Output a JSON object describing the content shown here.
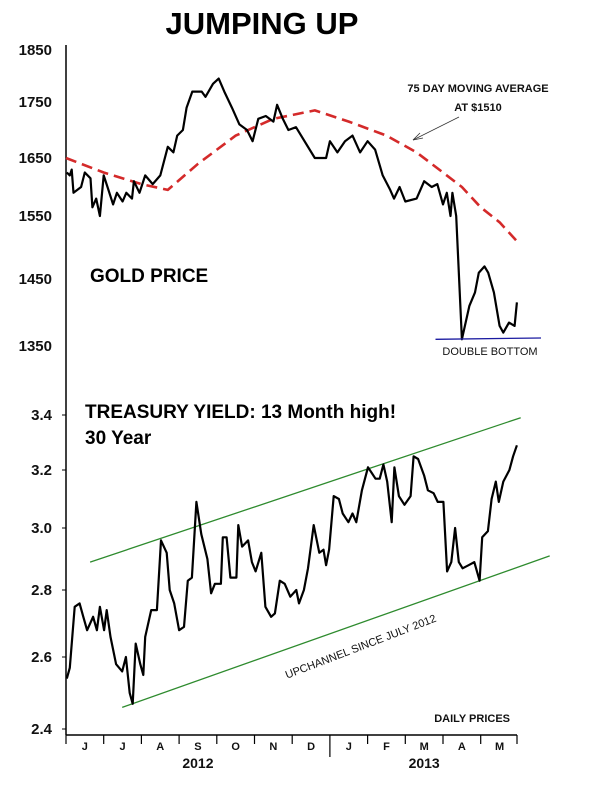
{
  "chart_data": [
    {
      "type": "line",
      "title": "JUMPING UP",
      "label": "GOLD PRICE",
      "ylim": [
        1350,
        1850
      ],
      "yticks": [
        1850,
        1750,
        1650,
        1550,
        1450,
        1350
      ],
      "series": [
        {
          "name": "Gold price",
          "color": "#000000",
          "x": [
            0.02,
            0.1,
            0.15,
            0.2,
            0.4,
            0.5,
            0.65,
            0.7,
            0.8,
            0.9,
            1.0,
            1.1,
            1.25,
            1.35,
            1.5,
            1.6,
            1.75,
            1.8,
            1.95,
            2.1,
            2.3,
            2.5,
            2.7,
            2.85,
            2.95,
            3.1,
            3.2,
            3.35,
            3.6,
            3.7,
            3.9,
            4.05,
            4.2,
            4.4,
            4.6,
            4.8,
            4.95,
            5.1,
            5.3,
            5.5,
            5.6,
            5.75,
            5.9,
            6.1,
            6.6,
            6.9,
            7.0,
            7.2,
            7.4,
            7.6,
            7.8,
            8.0,
            8.2,
            8.4,
            8.6,
            8.7,
            8.85,
            9.0,
            9.3,
            9.5,
            9.7,
            9.85,
            10.0,
            10.1,
            10.2,
            10.25,
            10.35,
            10.5,
            10.7,
            10.85,
            10.95,
            11.1,
            11.2,
            11.35,
            11.5,
            11.6,
            11.75,
            11.9,
            11.96
          ],
          "y": [
            1625,
            1620,
            1630,
            1590,
            1600,
            1625,
            1615,
            1565,
            1580,
            1550,
            1620,
            1600,
            1570,
            1590,
            1575,
            1590,
            1580,
            1610,
            1590,
            1620,
            1605,
            1620,
            1670,
            1660,
            1690,
            1700,
            1740,
            1770,
            1770,
            1760,
            1785,
            1795,
            1770,
            1740,
            1710,
            1700,
            1680,
            1720,
            1725,
            1715,
            1745,
            1720,
            1700,
            1705,
            1650,
            1650,
            1680,
            1660,
            1680,
            1690,
            1660,
            1680,
            1665,
            1620,
            1595,
            1580,
            1600,
            1575,
            1580,
            1610,
            1600,
            1605,
            1570,
            1590,
            1550,
            1590,
            1550,
            1360,
            1410,
            1430,
            1460,
            1470,
            1460,
            1430,
            1380,
            1370,
            1385,
            1380,
            1415
          ]
        },
        {
          "name": "75 day moving average",
          "color": "#d42a2a",
          "style": "dashed",
          "x": [
            0,
            1,
            2,
            2.7,
            3.5,
            4.5,
            5.5,
            6.6,
            7.5,
            8.5,
            9.3,
            10,
            10.5,
            11,
            11.5,
            11.96
          ],
          "y": [
            1650,
            1625,
            1605,
            1595,
            1640,
            1690,
            1720,
            1735,
            1715,
            1690,
            1660,
            1625,
            1600,
            1565,
            1540,
            1510
          ]
        },
        {
          "name": "Double bottom support",
          "color": "#1a1aa0",
          "x": [
            9.8,
            12.6
          ],
          "y": [
            1360,
            1362
          ]
        }
      ],
      "annotations": [
        {
          "text": "75 DAY MOVING AVERAGE",
          "line2": "AT $1510"
        },
        {
          "text": "DOUBLE BOTTOM"
        }
      ]
    },
    {
      "type": "line",
      "title": "TREASURY YIELD: 13 Month high!",
      "subtitle": "30 Year",
      "ylim": [
        2.4,
        3.4
      ],
      "yticks": [
        "3.4",
        "3.2",
        "3.0",
        "2.8",
        "2.6",
        "2.4"
      ],
      "xticks": [
        "J",
        "J",
        "A",
        "S",
        "O",
        "N",
        "D",
        "J",
        "F",
        "M",
        "A",
        "M"
      ],
      "years": [
        "2012",
        "2013"
      ],
      "note": "DAILY PRICES",
      "series": [
        {
          "name": "30 Year Treasury yield",
          "color": "#000000",
          "x": [
            0.02,
            0.1,
            0.23,
            0.36,
            0.46,
            0.56,
            0.72,
            0.82,
            0.9,
            1.01,
            1.08,
            1.18,
            1.33,
            1.49,
            1.59,
            1.69,
            1.77,
            1.85,
            1.97,
            2.05,
            2.1,
            2.26,
            2.41,
            2.52,
            2.67,
            2.75,
            2.87,
            3.0,
            3.13,
            3.23,
            3.34,
            3.46,
            3.59,
            3.75,
            3.85,
            3.95,
            4.11,
            4.16,
            4.26,
            4.36,
            4.52,
            4.57,
            4.67,
            4.83,
            4.93,
            5.03,
            5.18,
            5.29,
            5.44,
            5.54,
            5.67,
            5.8,
            5.95,
            6.11,
            6.18,
            6.31,
            6.42,
            6.57,
            6.72,
            6.83,
            6.9,
            6.98,
            7.1,
            7.24,
            7.34,
            7.49,
            7.6,
            7.7,
            7.85,
            8.01,
            8.11,
            8.21,
            8.32,
            8.42,
            8.52,
            8.64,
            8.71,
            8.83,
            8.98,
            9.14,
            9.22,
            9.34,
            9.5,
            9.6,
            9.75,
            9.86,
            10.01,
            10.11,
            10.22,
            10.32,
            10.42,
            10.52,
            10.68,
            10.83,
            10.97,
            11.04,
            11.19,
            11.29,
            11.4,
            11.48,
            11.6,
            11.76,
            11.86,
            11.96
          ],
          "y": [
            2.54,
            2.57,
            2.75,
            2.76,
            2.72,
            2.68,
            2.72,
            2.68,
            2.75,
            2.68,
            2.74,
            2.66,
            2.58,
            2.56,
            2.6,
            2.5,
            2.47,
            2.64,
            2.58,
            2.55,
            2.66,
            2.74,
            2.74,
            2.96,
            2.92,
            2.8,
            2.76,
            2.68,
            2.69,
            2.83,
            2.84,
            3.09,
            2.98,
            2.9,
            2.79,
            2.82,
            2.82,
            2.97,
            2.97,
            2.84,
            2.84,
            3.01,
            2.94,
            2.96,
            2.89,
            2.86,
            2.92,
            2.75,
            2.72,
            2.73,
            2.83,
            2.82,
            2.78,
            2.8,
            2.76,
            2.8,
            2.87,
            3.01,
            2.92,
            2.93,
            2.88,
            2.93,
            3.11,
            3.1,
            3.05,
            3.02,
            3.05,
            3.02,
            3.13,
            3.21,
            3.19,
            3.17,
            3.17,
            3.22,
            3.16,
            3.02,
            3.21,
            3.11,
            3.08,
            3.11,
            3.25,
            3.24,
            3.18,
            3.13,
            3.12,
            3.09,
            3.09,
            2.86,
            2.89,
            3.0,
            2.89,
            2.87,
            2.88,
            2.89,
            2.83,
            2.97,
            2.99,
            3.1,
            3.16,
            3.09,
            3.16,
            3.2,
            3.25,
            3.29
          ]
        },
        {
          "name": "Upper channel",
          "color": "#2e8b2e",
          "x": [
            0.64,
            12.06
          ],
          "y": [
            2.89,
            3.39
          ]
        },
        {
          "name": "Lower channel",
          "color": "#2e8b2e",
          "x": [
            1.49,
            12.83
          ],
          "y": [
            2.46,
            2.91
          ]
        }
      ],
      "annotations": [
        {
          "text": "UPCHANNEL SINCE JULY 2012"
        }
      ]
    }
  ]
}
